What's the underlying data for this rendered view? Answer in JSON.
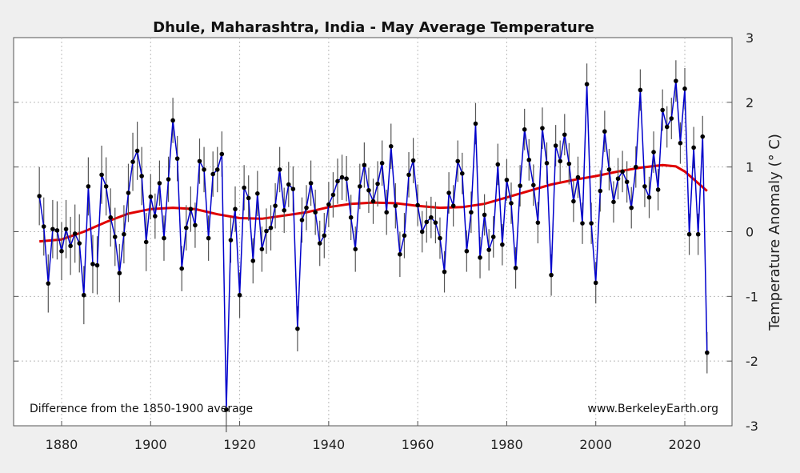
{
  "chart_data": {
    "type": "line",
    "title": "Dhule, Maharashtra, India - May Average Temperature",
    "xlabel": "",
    "ylabel": "Temperature Anomaly (° C)",
    "xlim": [
      1870,
      2030
    ],
    "ylim": [
      -3,
      3
    ],
    "x_ticks": [
      1880,
      1900,
      1920,
      1940,
      1960,
      1980,
      2000,
      2020
    ],
    "y_ticks": [
      -3,
      -2,
      -1,
      0,
      1,
      2,
      3
    ],
    "y_axis_side": "right",
    "grid": true,
    "annotations": {
      "baseline_note": "Difference from the 1850-1900 average",
      "source": "www.BerkeleyEarth.org"
    },
    "colors": {
      "annual": "#0000cc",
      "smooth": "#e00000",
      "points": "#000000",
      "error_bars": "#555555"
    },
    "annual": {
      "start_year": 1875,
      "values": [
        0.55,
        0.08,
        -0.8,
        0.04,
        0.02,
        -0.3,
        0.04,
        -0.22,
        -0.03,
        -0.18,
        -0.98,
        0.7,
        -0.5,
        -0.52,
        0.88,
        0.7,
        0.22,
        -0.08,
        -0.64,
        -0.04,
        0.6,
        1.08,
        1.25,
        0.86,
        -0.16,
        0.54,
        0.24,
        0.75,
        -0.1,
        0.81,
        1.72,
        1.13,
        -0.57,
        0.06,
        0.35,
        0.1,
        1.09,
        0.96,
        -0.1,
        0.89,
        0.96,
        1.2,
        -2.75,
        -0.13,
        0.35,
        -0.98,
        0.68,
        0.52,
        -0.45,
        0.59,
        -0.27,
        0.01,
        0.06,
        0.4,
        0.96,
        0.33,
        0.73,
        0.66,
        -1.5,
        0.18,
        0.37,
        0.75,
        0.3,
        -0.18,
        -0.06,
        0.42,
        0.57,
        0.78,
        0.84,
        0.82,
        0.22,
        -0.27,
        0.7,
        1.03,
        0.64,
        0.47,
        0.74,
        1.06,
        0.3,
        1.32,
        0.4,
        -0.35,
        -0.06,
        0.88,
        1.1,
        0.41,
        0.0,
        0.15,
        0.22,
        0.14,
        -0.1,
        -0.62,
        0.6,
        0.4,
        1.09,
        0.9,
        -0.3,
        0.3,
        1.67,
        -0.4,
        0.26,
        -0.28,
        -0.08,
        1.04,
        -0.2,
        0.8,
        0.44,
        -0.56,
        0.71,
        1.58,
        1.11,
        0.72,
        0.14,
        1.6,
        1.06,
        -0.67,
        1.33,
        1.09,
        1.5,
        1.05,
        0.47,
        0.84,
        0.13,
        2.28,
        0.13,
        -0.79,
        0.63,
        1.55,
        0.96,
        0.46,
        0.82,
        0.93,
        0.77,
        0.37,
        1.0,
        2.19,
        0.7,
        0.53,
        1.23,
        0.65,
        1.88,
        1.62,
        1.75,
        2.33,
        1.37,
        2.21,
        -0.04,
        1.3,
        -0.04,
        1.47,
        -1.87
      ],
      "uncertainty_by_period": [
        {
          "from": 1875,
          "to": 1899,
          "value": 0.45
        },
        {
          "from": 1900,
          "to": 1959,
          "value": 0.35
        },
        {
          "from": 1960,
          "to": 2025,
          "value": 0.32
        }
      ]
    },
    "smoothed": {
      "x": [
        1875,
        1880,
        1885,
        1890,
        1895,
        1900,
        1905,
        1910,
        1915,
        1920,
        1925,
        1930,
        1935,
        1940,
        1945,
        1950,
        1955,
        1960,
        1965,
        1970,
        1975,
        1980,
        1985,
        1990,
        1995,
        2000,
        2005,
        2010,
        2015,
        2018,
        2020,
        2023,
        2025
      ],
      "y": [
        -0.15,
        -0.12,
        0.0,
        0.15,
        0.28,
        0.35,
        0.37,
        0.35,
        0.27,
        0.21,
        0.2,
        0.25,
        0.3,
        0.38,
        0.43,
        0.45,
        0.44,
        0.4,
        0.37,
        0.38,
        0.43,
        0.53,
        0.63,
        0.73,
        0.8,
        0.86,
        0.93,
        0.99,
        1.03,
        1.01,
        0.93,
        0.75,
        0.63
      ]
    }
  }
}
